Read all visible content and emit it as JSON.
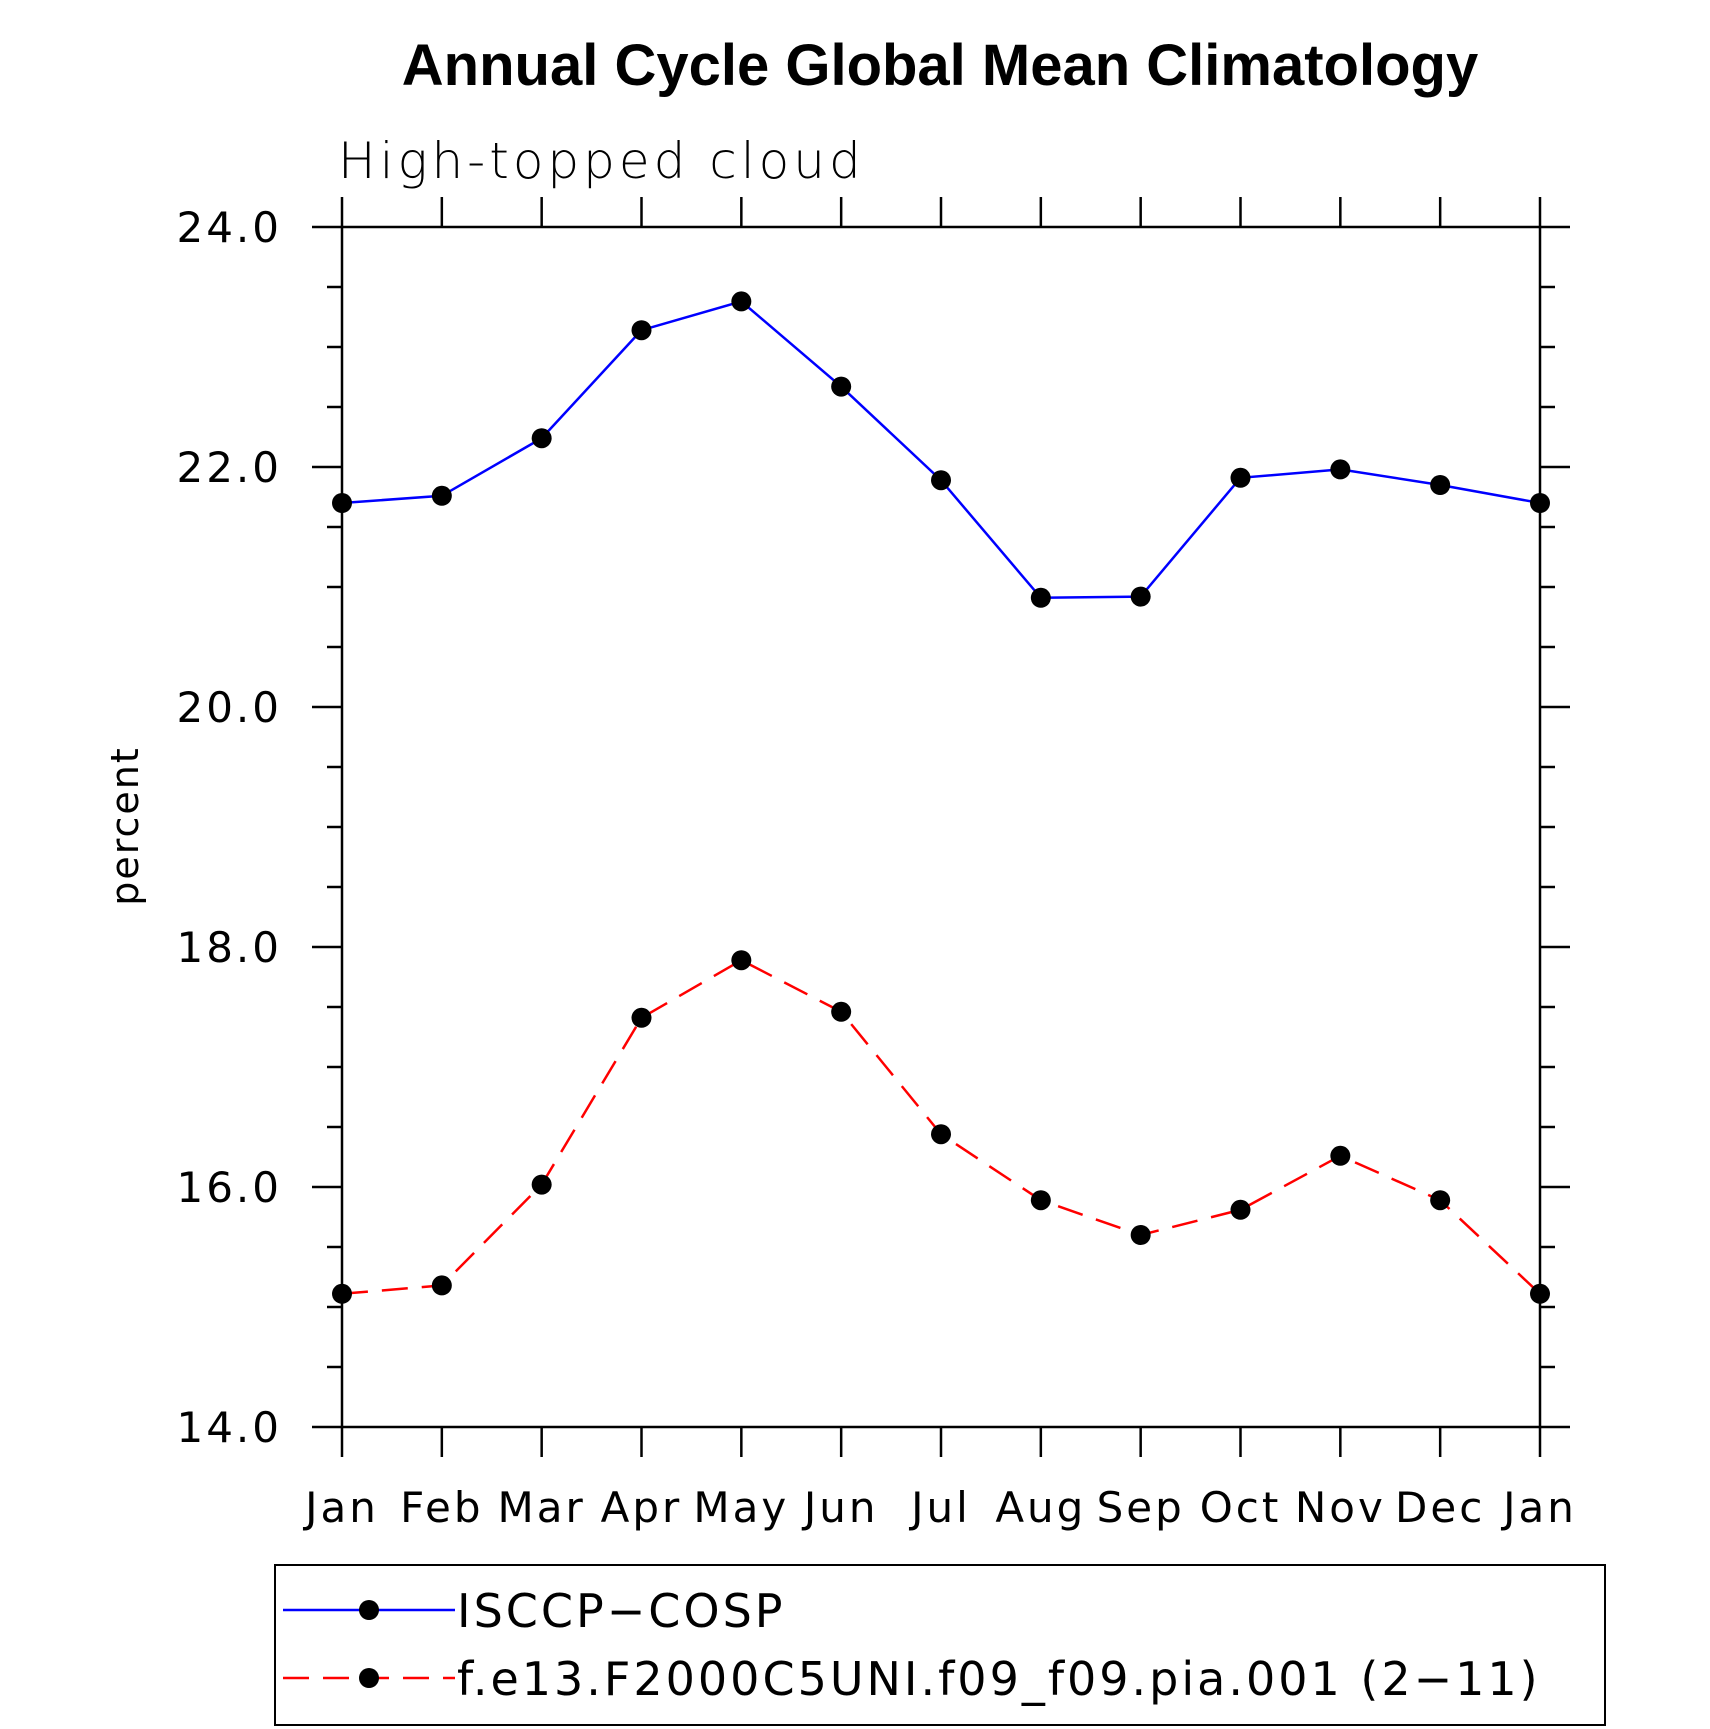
{
  "chart_data": {
    "type": "line",
    "title": "Annual Cycle Global Mean Climatology",
    "subtitle": "High-topped cloud",
    "xlabel": "",
    "ylabel": "percent",
    "categories": [
      "Jan",
      "Feb",
      "Mar",
      "Apr",
      "May",
      "Jun",
      "Jul",
      "Aug",
      "Sep",
      "Oct",
      "Nov",
      "Dec",
      "Jan"
    ],
    "ylim": [
      14.0,
      24.0
    ],
    "yticks": [
      "14.0",
      "16.0",
      "18.0",
      "20.0",
      "22.0",
      "24.0"
    ],
    "legend_position": "bottom",
    "series": [
      {
        "name": "ISCCP−COSP",
        "color": "#0000ff",
        "style": "solid",
        "marker": "circle",
        "values": [
          21.7,
          21.76,
          22.24,
          23.14,
          23.38,
          22.67,
          21.89,
          20.91,
          20.92,
          21.91,
          21.98,
          21.85,
          21.7
        ]
      },
      {
        "name": "f.e13.F2000C5UNI.f09_f09.pia.001 (2−11)",
        "color": "#ff0000",
        "style": "dashed",
        "marker": "circle",
        "values": [
          15.11,
          15.18,
          16.02,
          17.41,
          17.89,
          17.46,
          16.44,
          15.89,
          15.6,
          15.81,
          16.26,
          15.89,
          15.11
        ]
      }
    ]
  }
}
